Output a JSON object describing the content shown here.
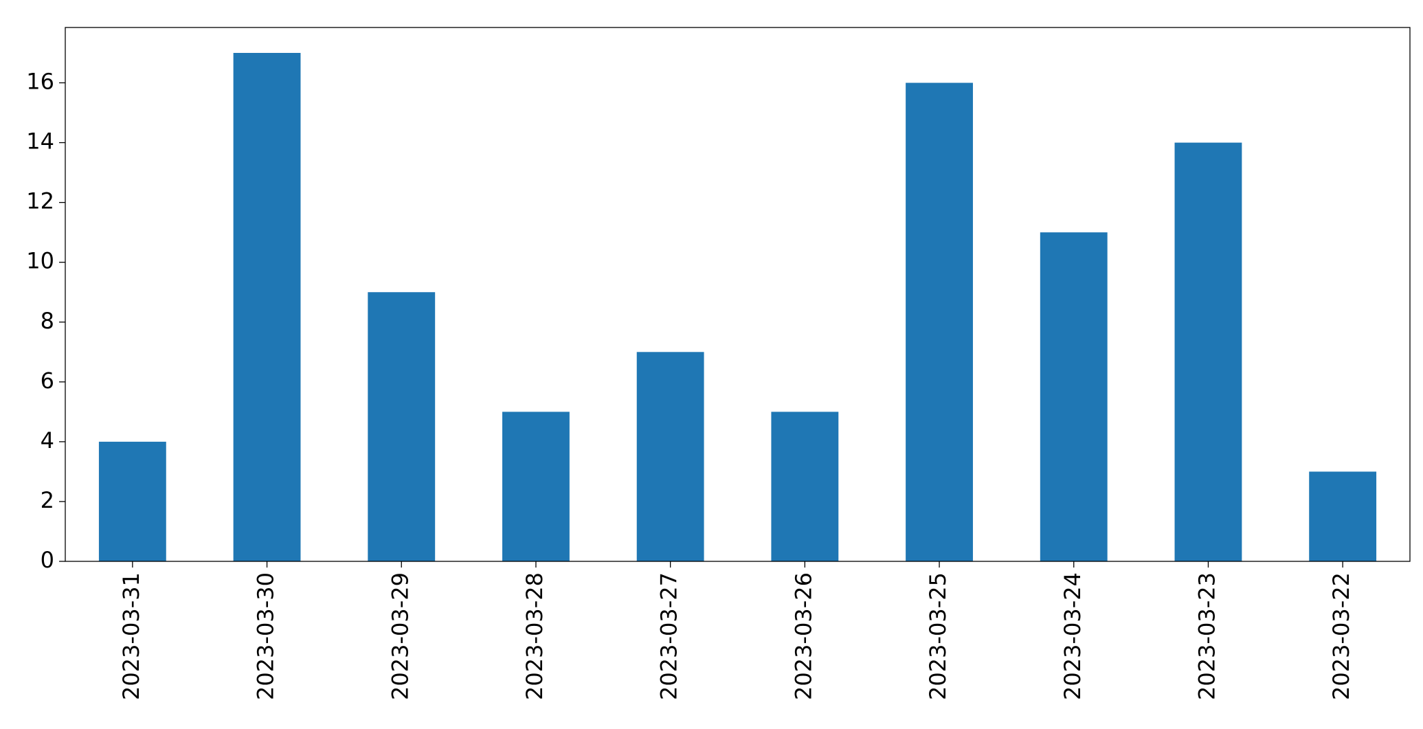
{
  "chart_data": {
    "type": "bar",
    "categories": [
      "2023-03-31",
      "2023-03-30",
      "2023-03-29",
      "2023-03-28",
      "2023-03-27",
      "2023-03-26",
      "2023-03-25",
      "2023-03-24",
      "2023-03-23",
      "2023-03-22"
    ],
    "values": [
      4,
      17,
      9,
      5,
      7,
      5,
      16,
      11,
      14,
      3
    ],
    "color": "#1f77b4",
    "ylim": [
      0,
      17.85
    ],
    "yticks": [
      0,
      2,
      4,
      6,
      8,
      10,
      12,
      14,
      16
    ],
    "grid": false
  }
}
